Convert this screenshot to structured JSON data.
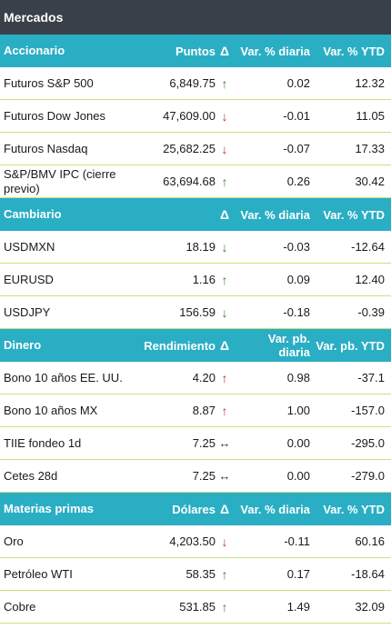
{
  "title": "Mercados",
  "sections": [
    {
      "header": {
        "name": "Accionario",
        "value": "Puntos",
        "delta": "Δ",
        "var1": "Var. % diaria",
        "var2": "Var. % YTD"
      },
      "rows": [
        {
          "name": "Futuros S&P 500",
          "value": "6,849.75",
          "arrow": "↑",
          "arrow_icon": "arrow-up-green-icon",
          "var1": "0.02",
          "var2": "12.32"
        },
        {
          "name": "Futuros Dow Jones",
          "value": "47,609.00",
          "arrow": "↓",
          "arrow_icon": "arrow-down-red-icon",
          "var1": "-0.01",
          "var2": "11.05"
        },
        {
          "name": "Futuros Nasdaq",
          "value": "25,682.25",
          "arrow": "↓",
          "arrow_icon": "arrow-down-red-icon",
          "var1": "-0.07",
          "var2": "17.33"
        },
        {
          "name": "S&P/BMV IPC (cierre previo)",
          "value": "63,694.68",
          "arrow": "↑",
          "arrow_icon": "arrow-up-green-icon",
          "var1": "0.26",
          "var2": "30.42"
        }
      ]
    },
    {
      "header": {
        "name": "Cambiario",
        "value": "",
        "delta": "Δ",
        "var1": "Var. % diaria",
        "var2": "Var. % YTD"
      },
      "rows": [
        {
          "name": "USDMXN",
          "value": "18.19",
          "arrow": "↓",
          "arrow_icon": "arrow-down-green-icon",
          "var1": "-0.03",
          "var2": "-12.64"
        },
        {
          "name": "EURUSD",
          "value": "1.16",
          "arrow": "↑",
          "arrow_icon": "arrow-up-green-icon",
          "var1": "0.09",
          "var2": "12.40"
        },
        {
          "name": "USDJPY",
          "value": "156.59",
          "arrow": "↓",
          "arrow_icon": "arrow-down-green-icon",
          "var1": "-0.18",
          "var2": "-0.39"
        }
      ]
    },
    {
      "header": {
        "name": "Dinero",
        "value": "Rendimiento",
        "delta": "Δ",
        "var1": "Var. pb. diaria",
        "var2": "Var. pb. YTD"
      },
      "rows": [
        {
          "name": "Bono 10 años EE. UU.",
          "value": "4.20",
          "arrow": "↑",
          "arrow_icon": "arrow-up-red-icon",
          "var1": "0.98",
          "var2": "-37.1"
        },
        {
          "name": "Bono 10 años MX",
          "value": "8.87",
          "arrow": "↑",
          "arrow_icon": "arrow-up-red-icon",
          "var1": "1.00",
          "var2": "-157.0"
        },
        {
          "name": "TIIE fondeo 1d",
          "value": "7.25",
          "arrow": "↔",
          "arrow_icon": "arrow-flat-icon",
          "var1": "0.00",
          "var2": "-295.0"
        },
        {
          "name": "Cetes 28d",
          "value": "7.25",
          "arrow": "↔",
          "arrow_icon": "arrow-flat-icon",
          "var1": "0.00",
          "var2": "-279.0"
        }
      ]
    },
    {
      "header": {
        "name": "Materias primas",
        "value": "Dólares",
        "delta": "Δ",
        "var1": "Var. % diaria",
        "var2": "Var. % YTD"
      },
      "rows": [
        {
          "name": "Oro",
          "value": "4,203.50",
          "arrow": "↓",
          "arrow_icon": "arrow-down-red-icon",
          "var1": "-0.11",
          "var2": "60.16"
        },
        {
          "name": "Petróleo WTI",
          "value": "58.35",
          "arrow": "↑",
          "arrow_icon": "arrow-up-green-icon",
          "var1": "0.17",
          "var2": "-18.64"
        },
        {
          "name": "Cobre",
          "value": "531.85",
          "arrow": "↑",
          "arrow_icon": "arrow-up-green-icon",
          "var1": "1.49",
          "var2": "32.09"
        }
      ]
    }
  ],
  "colors": {
    "title_bg": "#394049",
    "header_bg": "#2aaec4",
    "row_divider": "#cfe07a",
    "arrow_green": "#2e8b2e",
    "arrow_red": "#c0392b"
  }
}
